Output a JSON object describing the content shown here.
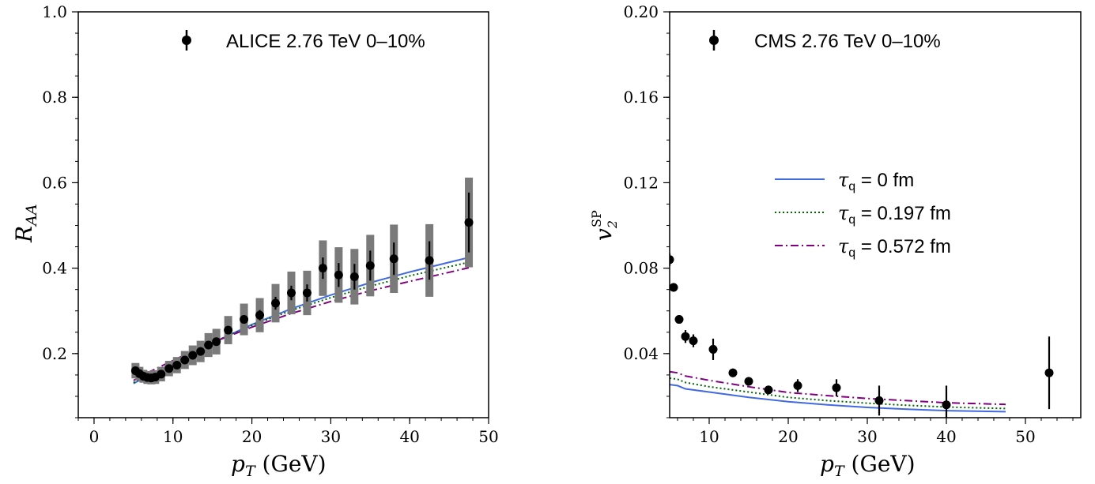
{
  "chart_data": [
    {
      "type": "scatter",
      "panel": "left",
      "xlabel_main": "p",
      "xlabel_sub": "T",
      "xlabel_unit": " (GeV)",
      "ylabel_main": "R",
      "ylabel_sub": "AA",
      "xlim": [
        -2,
        50
      ],
      "ylim": [
        0.05,
        1.0
      ],
      "xticks": [
        0,
        10,
        20,
        30,
        40,
        50
      ],
      "xtick_labels": [
        "0",
        "10",
        "20",
        "30",
        "40",
        "50"
      ],
      "yticks": [
        0.2,
        0.4,
        0.6,
        0.8,
        1.0
      ],
      "ytick_labels": [
        "0.2",
        "0.4",
        "0.6",
        "0.8",
        "1.0"
      ],
      "legend": {
        "location": "top",
        "label": "ALICE 2.76 TeV 0–10%"
      },
      "data_series": {
        "name": "ALICE 2.76 TeV 0–10%",
        "x": [
          5.25,
          5.75,
          6.25,
          6.75,
          7.25,
          7.75,
          8.5,
          9.5,
          10.5,
          11.5,
          12.5,
          13.5,
          14.5,
          15.5,
          17.0,
          19.0,
          21.0,
          23.0,
          25.0,
          27.0,
          29.0,
          31.0,
          33.0,
          35.0,
          38.0,
          42.5,
          47.5
        ],
        "y": [
          0.16,
          0.153,
          0.147,
          0.144,
          0.143,
          0.145,
          0.152,
          0.165,
          0.173,
          0.185,
          0.196,
          0.205,
          0.22,
          0.228,
          0.255,
          0.28,
          0.29,
          0.318,
          0.342,
          0.342,
          0.4,
          0.384,
          0.38,
          0.406,
          0.422,
          0.418,
          0.507
        ],
        "stat": [
          0.005,
          0.005,
          0.005,
          0.005,
          0.005,
          0.005,
          0.005,
          0.005,
          0.006,
          0.006,
          0.006,
          0.007,
          0.007,
          0.008,
          0.009,
          0.01,
          0.012,
          0.015,
          0.017,
          0.02,
          0.025,
          0.028,
          0.03,
          0.035,
          0.038,
          0.045,
          0.07
        ],
        "sys": [
          0.018,
          0.016,
          0.015,
          0.015,
          0.015,
          0.016,
          0.017,
          0.018,
          0.019,
          0.021,
          0.023,
          0.025,
          0.028,
          0.03,
          0.033,
          0.037,
          0.04,
          0.045,
          0.05,
          0.052,
          0.065,
          0.065,
          0.065,
          0.072,
          0.08,
          0.085,
          0.105
        ]
      },
      "model_curves": [
        {
          "name": "τq = 0 fm",
          "color": "#4169e1",
          "dash": "solid",
          "x": [
            5,
            7,
            10,
            15,
            20,
            25,
            30,
            35,
            40,
            47.5
          ],
          "y": [
            0.13,
            0.15,
            0.178,
            0.225,
            0.268,
            0.305,
            0.337,
            0.366,
            0.391,
            0.425
          ]
        },
        {
          "name": "τq = 0.197 fm",
          "color": "#006400",
          "dash": "dotted",
          "x": [
            5,
            7,
            10,
            15,
            20,
            25,
            30,
            35,
            40,
            47.5
          ],
          "y": [
            0.132,
            0.152,
            0.18,
            0.226,
            0.266,
            0.301,
            0.331,
            0.358,
            0.382,
            0.414
          ]
        },
        {
          "name": "τq = 0.572 fm",
          "color": "#800080",
          "dash": "dashdot",
          "x": [
            5,
            7,
            10,
            15,
            20,
            25,
            30,
            35,
            40,
            47.5
          ],
          "y": [
            0.137,
            0.157,
            0.184,
            0.226,
            0.262,
            0.294,
            0.322,
            0.347,
            0.369,
            0.401
          ]
        }
      ]
    },
    {
      "type": "scatter",
      "panel": "right",
      "xlabel_main": "p",
      "xlabel_sub": "T",
      "xlabel_unit": " (GeV)",
      "ylabel_main": "v",
      "ylabel_sub": "2",
      "ylabel_sup": "SP",
      "xlim": [
        5,
        57
      ],
      "ylim": [
        0.01,
        0.2
      ],
      "xticks": [
        10,
        20,
        30,
        40,
        50
      ],
      "xtick_labels": [
        "10",
        "20",
        "30",
        "40",
        "50"
      ],
      "yticks": [
        0.04,
        0.08,
        0.12,
        0.16,
        0.2
      ],
      "ytick_labels": [
        "0.04",
        "0.08",
        "0.12",
        "0.16",
        "0.20"
      ],
      "legend_data": {
        "location": "top",
        "label": "CMS 2.76 TeV 0–10%"
      },
      "legend_models": {
        "location": "center",
        "entries": [
          {
            "sym": "τ",
            "sub": "q",
            "rest": " = 0 fm"
          },
          {
            "sym": "τ",
            "sub": "q",
            "rest": " = 0.197 fm"
          },
          {
            "sym": "τ",
            "sub": "q",
            "rest": " = 0.572 fm"
          }
        ]
      },
      "data_series": {
        "name": "CMS 2.76 TeV 0–10%",
        "x": [
          5.0,
          5.5,
          6.2,
          7.0,
          8.0,
          10.5,
          13.0,
          15.0,
          17.5,
          21.2,
          26.1,
          31.5,
          40.0,
          53.0
        ],
        "y": [
          0.084,
          0.071,
          0.056,
          0.048,
          0.046,
          0.042,
          0.031,
          0.027,
          0.023,
          0.025,
          0.024,
          0.018,
          0.016,
          0.031
        ],
        "err": [
          0.003,
          0.002,
          0.002,
          0.003,
          0.003,
          0.005,
          0.002,
          0.002,
          0.002,
          0.003,
          0.004,
          0.007,
          0.009,
          0.017
        ]
      },
      "model_curves": [
        {
          "name": "τq = 0 fm",
          "color": "#4169e1",
          "dash": "solid",
          "x": [
            5,
            6,
            7,
            10,
            15,
            20,
            25,
            30,
            35,
            40,
            47.5
          ],
          "y": [
            0.0255,
            0.025,
            0.0235,
            0.022,
            0.0195,
            0.0175,
            0.016,
            0.0148,
            0.014,
            0.0133,
            0.0128
          ]
        },
        {
          "name": "τq = 0.197 fm",
          "color": "#006400",
          "dash": "dotted",
          "x": [
            5,
            6,
            7,
            10,
            15,
            20,
            25,
            30,
            35,
            40,
            47.5
          ],
          "y": [
            0.0285,
            0.028,
            0.0265,
            0.0245,
            0.022,
            0.0195,
            0.018,
            0.0168,
            0.0158,
            0.015,
            0.0143
          ]
        },
        {
          "name": "τq = 0.572 fm",
          "color": "#800080",
          "dash": "dashdot",
          "x": [
            5,
            6,
            7,
            10,
            15,
            20,
            25,
            30,
            35,
            40,
            47.5
          ],
          "y": [
            0.0315,
            0.031,
            0.0295,
            0.0275,
            0.0245,
            0.0218,
            0.0203,
            0.019,
            0.018,
            0.017,
            0.0162
          ]
        }
      ]
    }
  ]
}
